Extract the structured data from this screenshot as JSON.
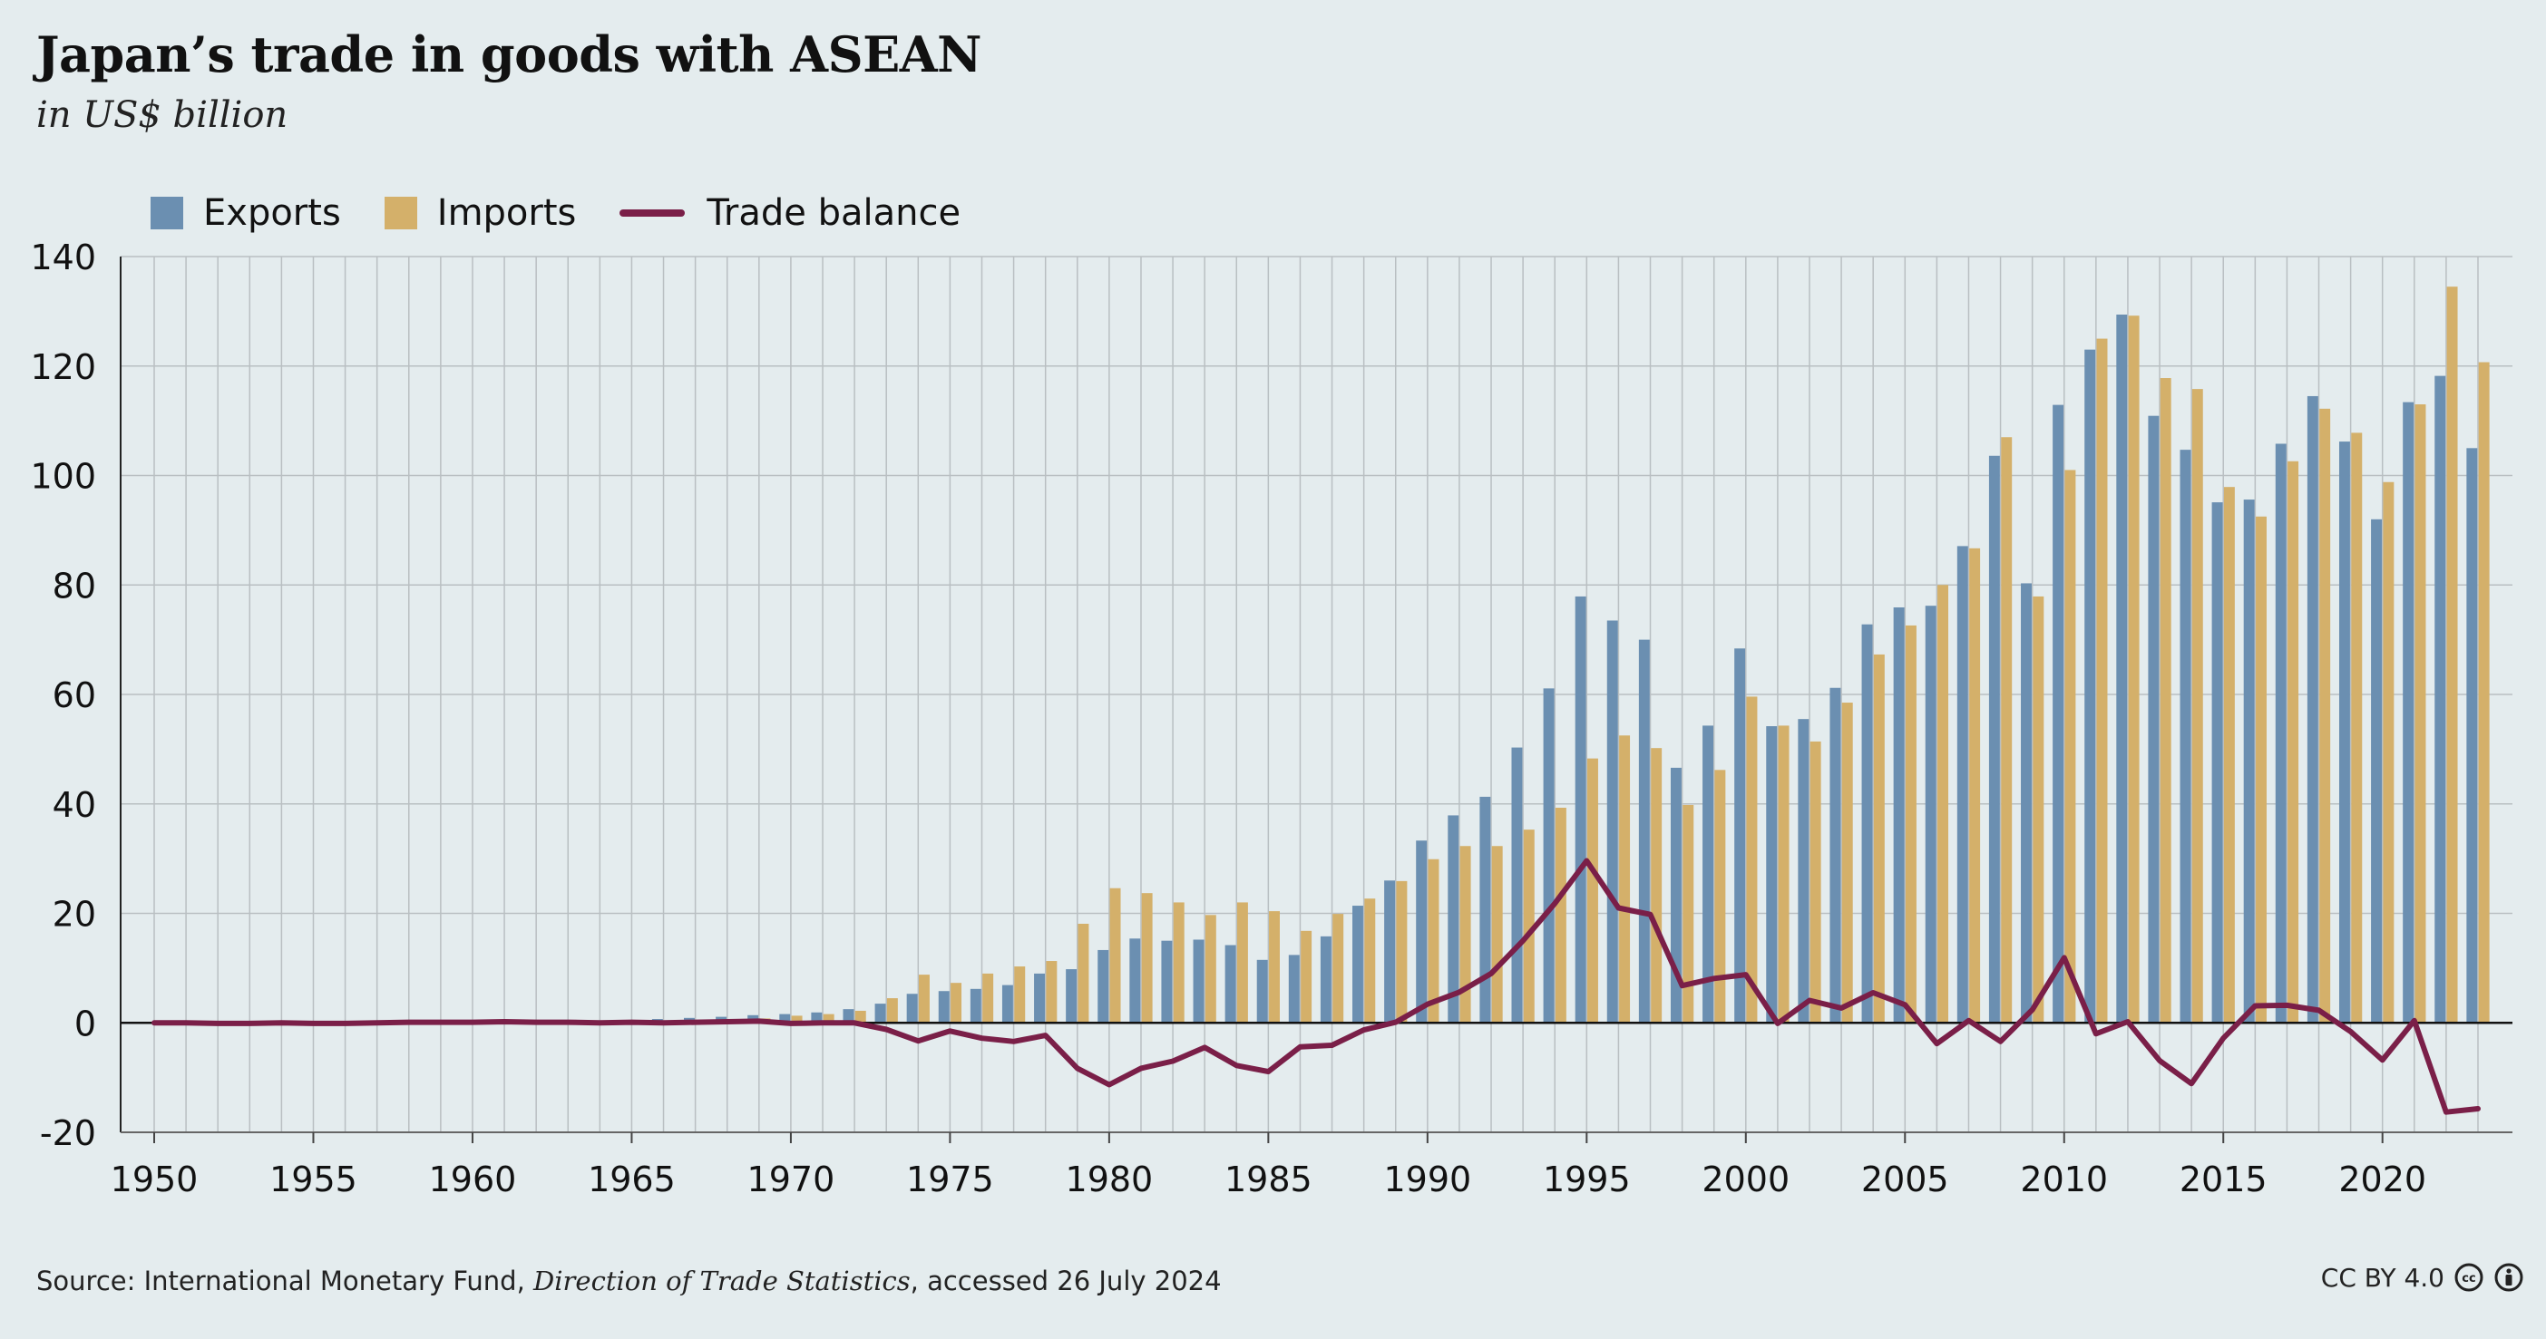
{
  "header": {
    "title": "Japan’s trade in goods with ASEAN",
    "subtitle": "in US$ billion"
  },
  "footer": {
    "source_prefix": "Source: International Monetary Fund, ",
    "source_title": "Direction of Trade Statistics",
    "source_suffix": ", accessed 26 July 2024",
    "license": "CC BY 4.0"
  },
  "colors": {
    "exports": "#6b8fb1",
    "imports": "#d4b06a",
    "balance": "#7a1f48",
    "grid": "#b9bfc2",
    "background": "#e4ecee"
  },
  "chart_data": {
    "type": "bar",
    "title": "Japan’s trade in goods with ASEAN",
    "subtitle": "in US$ billion",
    "xlabel": "",
    "ylabel": "",
    "ylim": [
      -20,
      140
    ],
    "yticks": [
      -20,
      0,
      20,
      40,
      60,
      80,
      100,
      120,
      140
    ],
    "xticks": [
      1950,
      1955,
      1960,
      1965,
      1970,
      1975,
      1980,
      1985,
      1990,
      1995,
      2000,
      2005,
      2010,
      2015,
      2020
    ],
    "grid": "vertical per year, horizontal per tick",
    "legend": "top-left",
    "x": [
      1950,
      1951,
      1952,
      1953,
      1954,
      1955,
      1956,
      1957,
      1958,
      1959,
      1960,
      1961,
      1962,
      1963,
      1964,
      1965,
      1966,
      1967,
      1968,
      1969,
      1970,
      1971,
      1972,
      1973,
      1974,
      1975,
      1976,
      1977,
      1978,
      1979,
      1980,
      1981,
      1982,
      1983,
      1984,
      1985,
      1986,
      1987,
      1988,
      1989,
      1990,
      1991,
      1992,
      1993,
      1994,
      1995,
      1996,
      1997,
      1998,
      1999,
      2000,
      2001,
      2002,
      2003,
      2004,
      2005,
      2006,
      2007,
      2008,
      2009,
      2010,
      2011,
      2012,
      2013,
      2014,
      2015,
      2016,
      2017,
      2018,
      2019,
      2020,
      2021,
      2022,
      2023
    ],
    "series": [
      {
        "name": "Exports",
        "type": "bar",
        "values": [
          0.1,
          0.1,
          0.1,
          0.1,
          0.1,
          0.1,
          0.1,
          0.1,
          0.1,
          0.1,
          0.2,
          0.2,
          0.2,
          0.3,
          0.4,
          0.5,
          0.7,
          0.9,
          1.1,
          1.4,
          1.6,
          1.9,
          2.5,
          3.5,
          5.3,
          5.8,
          6.2,
          6.9,
          9.0,
          9.8,
          13.3,
          15.4,
          15.0,
          15.2,
          14.2,
          11.5,
          12.4,
          15.8,
          21.4,
          26.0,
          33.3,
          37.9,
          41.3,
          50.3,
          61.1,
          77.9,
          73.5,
          70.0,
          46.6,
          54.3,
          68.4,
          54.2,
          55.5,
          61.2,
          72.8,
          75.9,
          76.2,
          87.1,
          103.6,
          80.3,
          112.9,
          123.0,
          129.4,
          110.9,
          104.7,
          95.1,
          95.6,
          105.8,
          114.5,
          106.2,
          92.0,
          113.4,
          118.2,
          105.0
        ]
      },
      {
        "name": "Imports",
        "type": "bar",
        "values": [
          0.1,
          0.1,
          0.1,
          0.1,
          0.1,
          0.1,
          0.1,
          0.1,
          0.1,
          0.1,
          0.1,
          0.1,
          0.1,
          0.1,
          0.1,
          0.2,
          0.3,
          0.4,
          0.5,
          0.8,
          1.3,
          1.6,
          2.2,
          4.5,
          8.8,
          7.3,
          9.0,
          10.3,
          11.3,
          18.1,
          24.6,
          23.7,
          22.0,
          19.7,
          22.0,
          20.4,
          16.8,
          19.9,
          22.7,
          25.9,
          29.9,
          32.3,
          32.3,
          35.3,
          39.3,
          48.3,
          52.5,
          50.2,
          39.8,
          46.2,
          59.6,
          54.3,
          51.4,
          58.5,
          67.3,
          72.6,
          80.0,
          86.7,
          107.0,
          77.9,
          101.0,
          125.0,
          129.2,
          117.8,
          115.8,
          97.9,
          92.5,
          102.6,
          112.2,
          107.8,
          98.8,
          113.0,
          134.5,
          120.7
        ]
      },
      {
        "name": "Trade balance",
        "type": "line",
        "values": [
          0.0,
          0.0,
          -0.1,
          -0.1,
          0.0,
          -0.1,
          -0.1,
          0.0,
          0.1,
          0.1,
          0.1,
          0.2,
          0.1,
          0.1,
          0.0,
          0.1,
          0.0,
          0.1,
          0.2,
          0.3,
          -0.1,
          0.0,
          0.0,
          -1.2,
          -3.3,
          -1.5,
          -2.8,
          -3.4,
          -2.3,
          -8.3,
          -11.3,
          -8.3,
          -7.0,
          -4.5,
          -7.8,
          -8.9,
          -4.4,
          -4.1,
          -1.3,
          0.1,
          3.4,
          5.6,
          9.0,
          15.0,
          21.8,
          29.6,
          21.0,
          19.8,
          6.8,
          8.1,
          8.8,
          -0.1,
          4.1,
          2.7,
          5.5,
          3.3,
          -3.8,
          0.4,
          -3.4,
          2.4,
          11.9,
          -2.0,
          0.2,
          -6.9,
          -11.1,
          -2.8,
          3.1,
          3.2,
          2.3,
          -1.6,
          -6.8,
          0.4,
          -16.3,
          -15.7
        ]
      }
    ]
  }
}
